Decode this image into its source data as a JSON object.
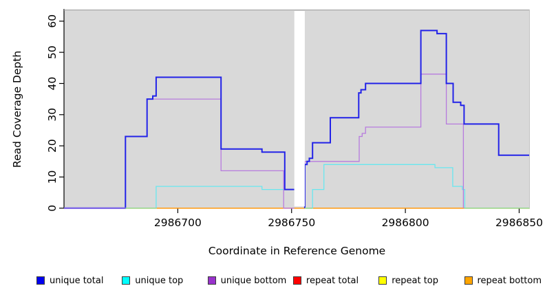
{
  "axes": {
    "y": {
      "label": "Read Coverage Depth",
      "ticks": [
        0,
        10,
        20,
        30,
        40,
        50,
        60
      ]
    },
    "x": {
      "label": "Coordinate in Reference Genome",
      "ticks": [
        2986700,
        2986750,
        2986800,
        2986850
      ]
    }
  },
  "legend": {
    "items": [
      {
        "label": "unique total",
        "color": "#0000f0"
      },
      {
        "label": "unique top",
        "color": "#00ffff"
      },
      {
        "label": "unique bottom",
        "color": "#9932cc"
      },
      {
        "label": "repeat total",
        "color": "#ff0000"
      },
      {
        "label": "repeat top",
        "color": "#ffff00"
      },
      {
        "label": "repeat bottom",
        "color": "#ffa500"
      }
    ]
  },
  "colors": {
    "panel_bg": "#d9d9d9",
    "panel_top_edge": "#a5a5a5",
    "panel_right_edge": "#c4c4c4",
    "axis": "#000000",
    "gap_fill": "#ffffff"
  },
  "chart_data": {
    "type": "line",
    "subtype": "step",
    "title": "",
    "xlabel": "Coordinate in Reference Genome",
    "ylabel": "Read Coverage Depth",
    "xlim": [
      2986650,
      2986854.7
    ],
    "ylim": [
      0,
      63.7
    ],
    "x_ticks": [
      2986700,
      2986750,
      2986800,
      2986850
    ],
    "y_ticks": [
      0,
      10,
      20,
      30,
      40,
      50,
      60
    ],
    "grid": false,
    "legend_position": "bottom",
    "gap": {
      "from": 2986751.2,
      "to": 2986755.8
    },
    "series": [
      {
        "name": "repeat total",
        "color": "#e00000",
        "width": 1.2,
        "parts": [
          [
            [
              2986650,
              2986854.7,
              0
            ]
          ]
        ]
      },
      {
        "name": "repeat top",
        "color": "#ffff00",
        "width": 1.2,
        "parts": [
          [
            [
              2986650,
              2986854.7,
              0
            ]
          ]
        ]
      },
      {
        "name": "repeat bottom",
        "color": "#ff9e1e",
        "width": 1.6,
        "parts": [
          [
            [
              2986650,
              2986854.7,
              0
            ]
          ]
        ]
      },
      {
        "name": "unique top",
        "color": "#68e7ef",
        "width": 1.3,
        "parts": [
          [
            [
              2986650,
              2986690.5,
              0
            ],
            [
              2986690.5,
              2986737,
              7
            ],
            [
              2986737,
              2986751.2,
              6
            ]
          ],
          [
            [
              2986755.8,
              2986759.2,
              0
            ],
            [
              2986759.2,
              2986764.2,
              6
            ],
            [
              2986764.2,
              2986813,
              14
            ],
            [
              2986813,
              2986820.8,
              13
            ],
            [
              2986820.8,
              2986825,
              7
            ],
            [
              2986825,
              2986826.1,
              6
            ],
            [
              2986826.1,
              2986854.7,
              0
            ]
          ]
        ]
      },
      {
        "name": "unique bottom",
        "color": "#b77ade",
        "width": 1.3,
        "parts": [
          [
            [
              2986650,
              2986677,
              0
            ],
            [
              2986677,
              2986686.5,
              23
            ],
            [
              2986686.5,
              2986719,
              35
            ],
            [
              2986719,
              2986746.5,
              12
            ],
            [
              2986746.5,
              2986751.2,
              0
            ]
          ],
          [
            [
              2986755.8,
              2986755.8,
              0
            ],
            [
              2986755.8,
              2986779.7,
              15
            ],
            [
              2986779.7,
              2986781,
              23
            ],
            [
              2986781,
              2986782.5,
              24
            ],
            [
              2986782.5,
              2986806.8,
              26
            ],
            [
              2986806.8,
              2986818,
              43
            ],
            [
              2986818,
              2986825.5,
              27
            ],
            [
              2986825.5,
              2986825.5,
              0
            ]
          ]
        ]
      },
      {
        "name": "unique total",
        "color": "#2222e8",
        "width": 2,
        "parts": [
          [
            [
              2986650,
              2986677,
              0
            ],
            [
              2986677,
              2986686.5,
              23
            ],
            [
              2986686.5,
              2986689,
              35
            ],
            [
              2986689,
              2986690.5,
              36
            ],
            [
              2986690.5,
              2986719,
              42
            ],
            [
              2986719,
              2986737,
              19
            ],
            [
              2986737,
              2986747,
              18
            ],
            [
              2986747,
              2986751.2,
              6
            ]
          ],
          [
            [
              2986755.8,
              2986755.8,
              0
            ],
            [
              2986755.8,
              2986756.8,
              14
            ],
            [
              2986756.8,
              2986757.8,
              15
            ],
            [
              2986757.8,
              2986759.2,
              16
            ],
            [
              2986759.2,
              2986767,
              21
            ],
            [
              2986767,
              2986779.5,
              29
            ],
            [
              2986779.5,
              2986780.5,
              37
            ],
            [
              2986780.5,
              2986782.5,
              38
            ],
            [
              2986782.5,
              2986806.8,
              40
            ],
            [
              2986806.8,
              2986813.9,
              57
            ],
            [
              2986813.9,
              2986818,
              56
            ],
            [
              2986818,
              2986821,
              40
            ],
            [
              2986821,
              2986824.3,
              34
            ],
            [
              2986824.3,
              2986825.8,
              33
            ],
            [
              2986825.8,
              2986841,
              27
            ],
            [
              2986841,
              2986854.7,
              17
            ]
          ]
        ]
      }
    ],
    "baseline_overlays": [
      {
        "name": "blend-green-left",
        "color": "#90d890",
        "width": 1.5,
        "from": 2986677,
        "to": 2986690.5
      },
      {
        "name": "blend-green-mid",
        "color": "#90d890",
        "width": 1.5,
        "from": 2986755.8,
        "to": 2986759.2
      },
      {
        "name": "blend-green-right",
        "color": "#90d890",
        "width": 1.5,
        "from": 2986826.1,
        "to": 2986854.7
      },
      {
        "name": "blend-violet-left",
        "color": "#8168e8",
        "width": 2.2,
        "from": 2986650,
        "to": 2986677
      }
    ]
  }
}
